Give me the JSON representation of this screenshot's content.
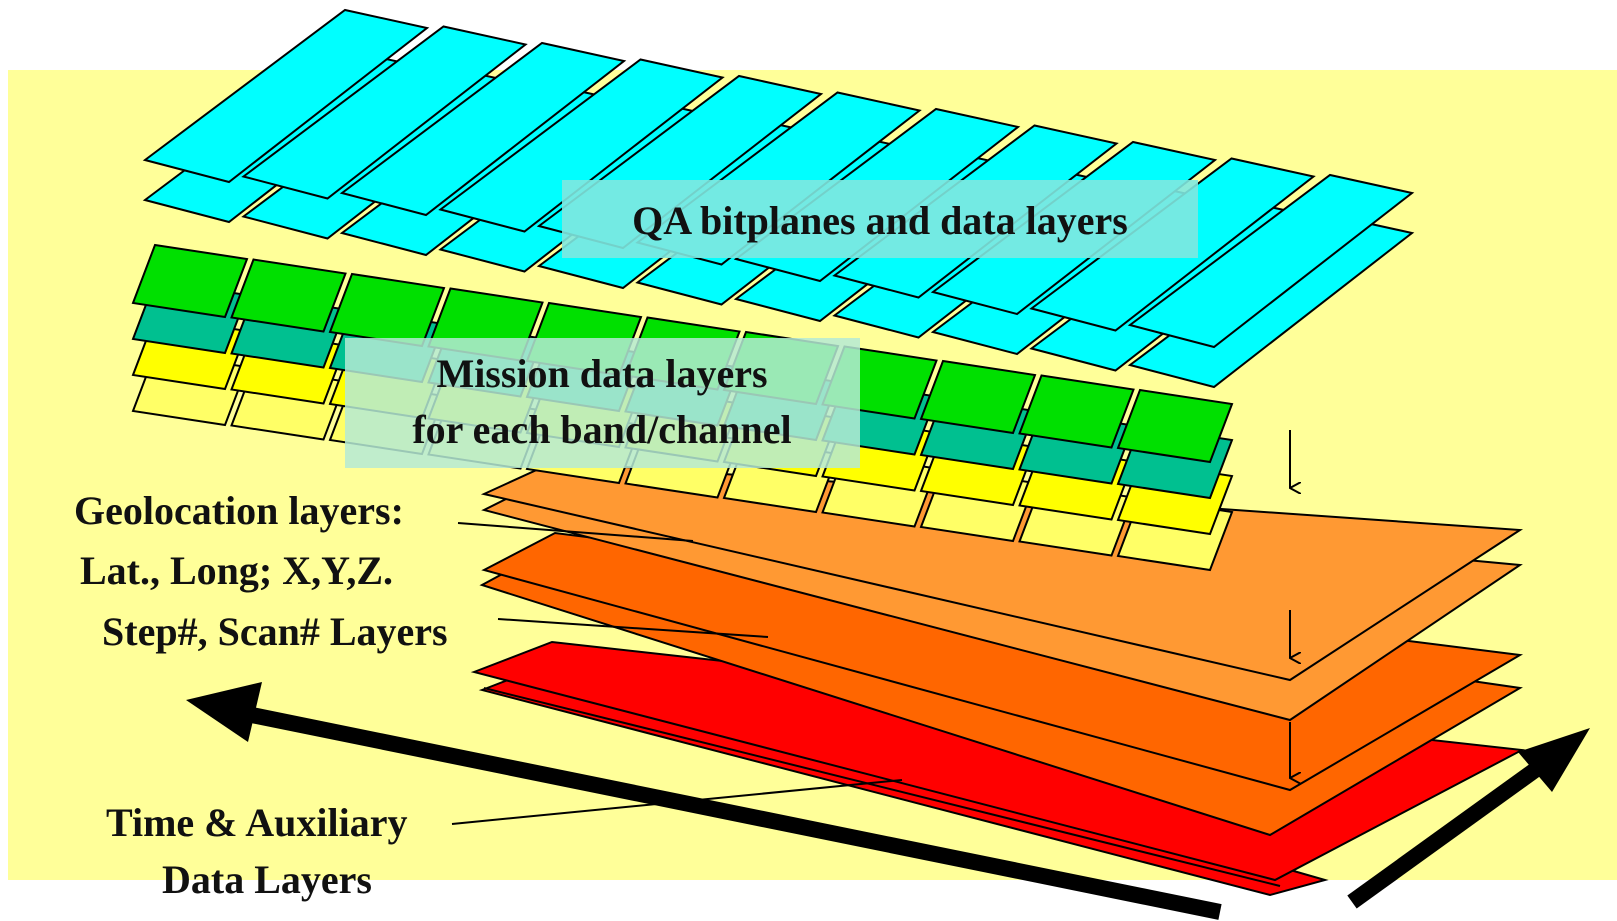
{
  "labels": {
    "qa": "QA bitplanes and data layers",
    "mission_line1": "Mission data layers",
    "mission_line2": "for each band/channel",
    "geo_line1": "Geolocation layers:",
    "geo_line2": "Lat., Long; X,Y,Z.",
    "step": "Step#, Scan# Layers",
    "time_line1": "Time & Auxiliary",
    "time_line2": "Data Layers"
  },
  "colors": {
    "background_panel": "#FFFF99",
    "qa_layer": "#00FFFF",
    "mission_green": "#00E000",
    "mission_teal": "#00C090",
    "mission_yellow": "#FFFF00",
    "mission_pale_yellow": "#FFFF66",
    "geolocation_layer": "#FF9933",
    "step_scan_layer": "#FF6600",
    "time_aux_layer": "#FF0000"
  },
  "icons": {
    "big_arrow_left": "thick-arrow-left-icon",
    "big_arrow_right": "thick-arrow-right-icon",
    "small_arrows": "arrow-down-icon"
  }
}
